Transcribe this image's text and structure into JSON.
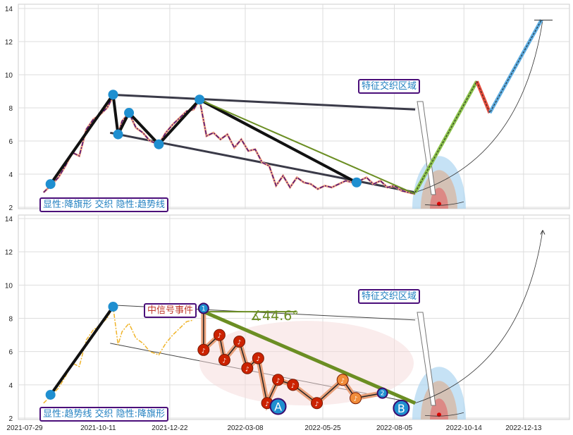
{
  "chart_data": [
    {
      "type": "line",
      "panel": "top",
      "ylim": [
        2,
        14
      ],
      "yticks": [
        2,
        4,
        6,
        8,
        10,
        12,
        14
      ],
      "label": "显性:降旗形 交织 隐性:趋势线",
      "zone_label": "特征交织区域",
      "colors": {
        "price": "#4b0f7a",
        "trend": "#333",
        "green": "#6b8e23",
        "dot": "#1f8fd0"
      },
      "price": [
        [
          "2021-08-17",
          2.9
        ],
        [
          "2021-08-24",
          3.3
        ],
        [
          "2021-09-01",
          3.8
        ],
        [
          "2021-09-08",
          4.5
        ],
        [
          "2021-09-15",
          5.3
        ],
        [
          "2021-09-22",
          5.1
        ],
        [
          "2021-09-29",
          6.7
        ],
        [
          "2021-10-06",
          7.3
        ],
        [
          "2021-10-13",
          7.6
        ],
        [
          "2021-10-20",
          8.0
        ],
        [
          "2021-10-26",
          8.7
        ],
        [
          "2021-10-31",
          6.4
        ],
        [
          "2021-11-04",
          7.2
        ],
        [
          "2021-11-11",
          7.7
        ],
        [
          "2021-11-18",
          6.8
        ],
        [
          "2021-11-25",
          6.5
        ],
        [
          "2021-12-02",
          6.0
        ],
        [
          "2021-12-11",
          5.8
        ],
        [
          "2021-12-18",
          6.5
        ],
        [
          "2021-12-25",
          7.0
        ],
        [
          "2022-01-01",
          7.4
        ],
        [
          "2022-01-08",
          7.8
        ],
        [
          "2022-01-15",
          7.9
        ],
        [
          "2022-01-21",
          8.5
        ],
        [
          "2022-01-28",
          6.3
        ],
        [
          "2022-02-04",
          6.5
        ],
        [
          "2022-02-11",
          6.1
        ],
        [
          "2022-02-18",
          6.4
        ],
        [
          "2022-02-25",
          5.6
        ],
        [
          "2022-03-04",
          6.1
        ],
        [
          "2022-03-11",
          5.4
        ],
        [
          "2022-03-18",
          5.5
        ],
        [
          "2022-03-25",
          4.7
        ],
        [
          "2022-04-01",
          4.5
        ],
        [
          "2022-04-08",
          3.3
        ],
        [
          "2022-04-15",
          3.9
        ],
        [
          "2022-04-22",
          3.2
        ],
        [
          "2022-04-29",
          3.8
        ],
        [
          "2022-05-06",
          3.5
        ],
        [
          "2022-05-13",
          3.4
        ],
        [
          "2022-05-20",
          3.1
        ],
        [
          "2022-05-27",
          3.3
        ],
        [
          "2022-06-03",
          3.2
        ],
        [
          "2022-06-10",
          3.4
        ],
        [
          "2022-06-17",
          3.6
        ],
        [
          "2022-06-24",
          3.5
        ],
        [
          "2022-07-01",
          3.6
        ],
        [
          "2022-07-08",
          3.8
        ],
        [
          "2022-07-15",
          3.4
        ],
        [
          "2022-07-22",
          3.6
        ],
        [
          "2022-07-29",
          3.2
        ],
        [
          "2022-08-05",
          3.3
        ],
        [
          "2022-08-12",
          3.0
        ],
        [
          "2022-08-19",
          2.9
        ],
        [
          "2022-08-26",
          2.8
        ]
      ],
      "pivots": [
        [
          "2021-08-24",
          3.4
        ],
        [
          "2021-10-26",
          8.8
        ],
        [
          "2021-10-31",
          6.4
        ],
        [
          "2021-11-11",
          7.7
        ],
        [
          "2021-12-11",
          5.8
        ],
        [
          "2022-01-21",
          8.5
        ],
        [
          "2022-06-28",
          3.5
        ]
      ],
      "upper_trend": [
        [
          "2021-10-23",
          8.8
        ],
        [
          "2022-08-26",
          7.9
        ]
      ],
      "lower_trend": [
        [
          "2021-10-23",
          6.5
        ],
        [
          "2022-08-26",
          2.9
        ]
      ],
      "green_line": [
        [
          "2022-01-21",
          8.5
        ],
        [
          "2022-08-26",
          2.8
        ]
      ],
      "projection": [
        [
          "2022-08-26",
          2.9
        ],
        [
          "2022-10-27",
          9.6
        ],
        [
          "2022-11-09",
          7.7
        ],
        [
          "2022-12-31",
          13.3
        ]
      ]
    },
    {
      "type": "line",
      "panel": "bottom",
      "ylim": [
        2,
        14
      ],
      "yticks": [
        2,
        4,
        6,
        8,
        10,
        12,
        14
      ],
      "xticks": [
        "2021-07-29",
        "2021-10-11",
        "2021-12-22",
        "2022-03-08",
        "2022-05-25",
        "2022-08-05",
        "2022-10-14",
        "2022-12-13"
      ],
      "label": "显性:趋势线 交织 隐性:降旗形",
      "zone_label": "特征交织区域",
      "event_label": "中信号事件",
      "angle_label": "∡44.6°",
      "colors": {
        "price": "#f0b429",
        "note": "#cc2200",
        "green": "#6b8e23"
      },
      "price": [
        [
          "2021-08-17",
          2.9
        ],
        [
          "2021-08-24",
          3.3
        ],
        [
          "2021-09-01",
          3.8
        ],
        [
          "2021-09-08",
          4.5
        ],
        [
          "2021-09-15",
          5.3
        ],
        [
          "2021-09-22",
          5.1
        ],
        [
          "2021-09-29",
          6.7
        ],
        [
          "2021-10-06",
          7.3
        ],
        [
          "2021-10-13",
          7.6
        ],
        [
          "2021-10-20",
          8.0
        ],
        [
          "2021-10-26",
          8.7
        ],
        [
          "2021-10-31",
          6.4
        ],
        [
          "2021-11-04",
          7.2
        ],
        [
          "2021-11-11",
          7.7
        ],
        [
          "2021-11-18",
          6.8
        ],
        [
          "2021-11-25",
          6.5
        ],
        [
          "2021-12-02",
          6.0
        ],
        [
          "2021-12-11",
          5.8
        ],
        [
          "2021-12-18",
          6.5
        ],
        [
          "2021-12-25",
          7.0
        ],
        [
          "2022-01-01",
          7.4
        ],
        [
          "2022-01-08",
          7.8
        ],
        [
          "2022-01-15",
          7.9
        ]
      ],
      "black_line": [
        [
          "2021-08-24",
          3.4
        ],
        [
          "2021-10-26",
          8.7
        ]
      ],
      "notes": [
        [
          "2022-01-25",
          6.1
        ],
        [
          "2022-02-10",
          7.0
        ],
        [
          "2022-02-15",
          5.5
        ],
        [
          "2022-03-02",
          6.6
        ],
        [
          "2022-03-10",
          5.0
        ],
        [
          "2022-03-21",
          5.6
        ],
        [
          "2022-03-30",
          2.9
        ],
        [
          "2022-04-10",
          4.3
        ],
        [
          "2022-04-25",
          4.0
        ],
        [
          "2022-05-19",
          2.9
        ],
        [
          "2022-06-14",
          4.3
        ],
        [
          "2022-06-27",
          3.2
        ],
        [
          "2022-07-24",
          3.5
        ]
      ],
      "markers": [
        {
          "label": "1",
          "date": "2022-01-25",
          "value": 8.6
        },
        {
          "label": "2",
          "date": "2022-07-24",
          "value": 3.5
        },
        {
          "label": "A",
          "date": "2022-04-10",
          "value": 2.7
        },
        {
          "label": "B",
          "date": "2022-08-12",
          "value": 2.6
        }
      ],
      "upper_trend": [
        [
          "2021-10-23",
          8.8
        ],
        [
          "2022-08-26",
          7.9
        ]
      ],
      "lower_trend": [
        [
          "2021-10-23",
          6.5
        ],
        [
          "2022-08-26",
          2.9
        ]
      ],
      "green_line": [
        [
          "2022-01-25",
          8.4
        ],
        [
          "2022-08-26",
          2.9
        ]
      ]
    }
  ]
}
